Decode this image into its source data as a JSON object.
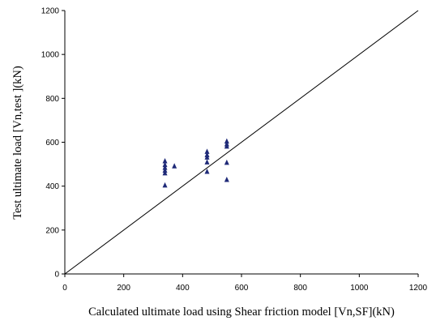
{
  "chart_data": {
    "type": "scatter",
    "title": "",
    "xlabel": "Calculated ultimate load using Shear friction model [Vn,SF](kN)",
    "ylabel": "Test ultimate load [Vn,test ](kN)",
    "xlim": [
      0,
      1200
    ],
    "ylim": [
      0,
      1200
    ],
    "x_ticks": [
      "0",
      "200",
      "400",
      "600",
      "800",
      "1000",
      "1200"
    ],
    "y_ticks": [
      "0",
      "200",
      "400",
      "600",
      "800",
      "1000",
      "1200"
    ],
    "grid": false,
    "legend": "none",
    "marker": "triangle",
    "marker_color": "#1f2a78",
    "reference_line": {
      "from": [
        0,
        0
      ],
      "to": [
        1200,
        1200
      ]
    },
    "series": [
      {
        "points": [
          {
            "x": 340,
            "y": 515
          },
          {
            "x": 340,
            "y": 498
          },
          {
            "x": 340,
            "y": 485
          },
          {
            "x": 340,
            "y": 472
          },
          {
            "x": 340,
            "y": 460
          },
          {
            "x": 340,
            "y": 405
          },
          {
            "x": 372,
            "y": 492
          },
          {
            "x": 483,
            "y": 558
          },
          {
            "x": 483,
            "y": 543
          },
          {
            "x": 483,
            "y": 532
          },
          {
            "x": 483,
            "y": 510
          },
          {
            "x": 483,
            "y": 467
          },
          {
            "x": 550,
            "y": 605
          },
          {
            "x": 550,
            "y": 592
          },
          {
            "x": 550,
            "y": 582
          },
          {
            "x": 550,
            "y": 508
          },
          {
            "x": 550,
            "y": 430
          }
        ]
      }
    ]
  }
}
